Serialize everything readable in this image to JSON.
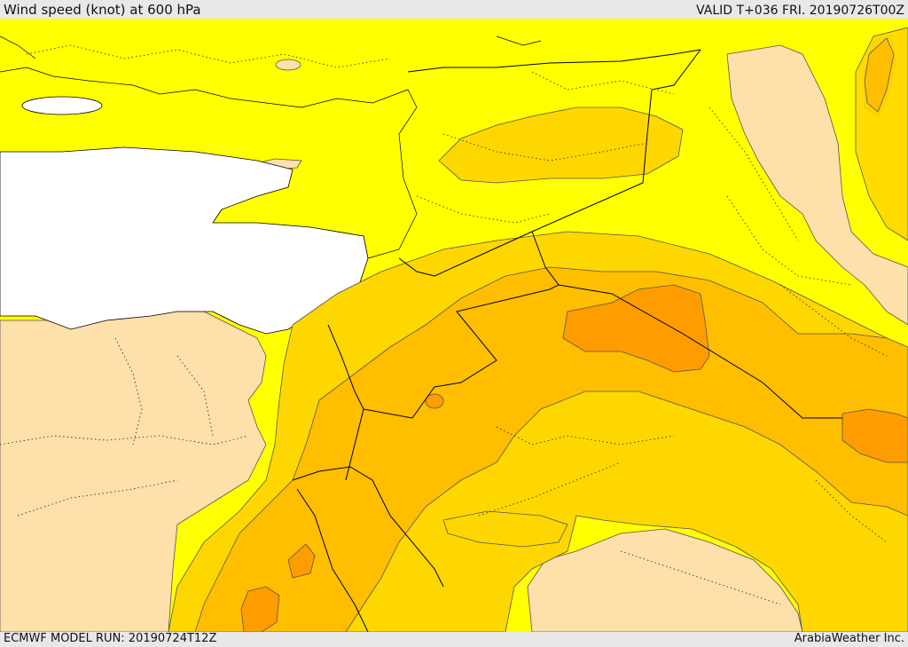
{
  "header": {
    "title": "Wind speed (knot) at 600 hPa",
    "valid": "VALID T+036 FRI. 20190726T00Z"
  },
  "footer": {
    "model_run": "ECMWF MODEL RUN: 20190724T12Z",
    "credit": "ArabiaWeather Inc."
  },
  "colors": {
    "sea": "#ffffff",
    "band_lt10": "#fde0aa",
    "band_10_20": "#ffff00",
    "band_20_30": "#ffd700",
    "band_30_40": "#ffbe00",
    "band_40_50": "#ff9d00",
    "border": "#000000",
    "contour": "#555555"
  }
}
